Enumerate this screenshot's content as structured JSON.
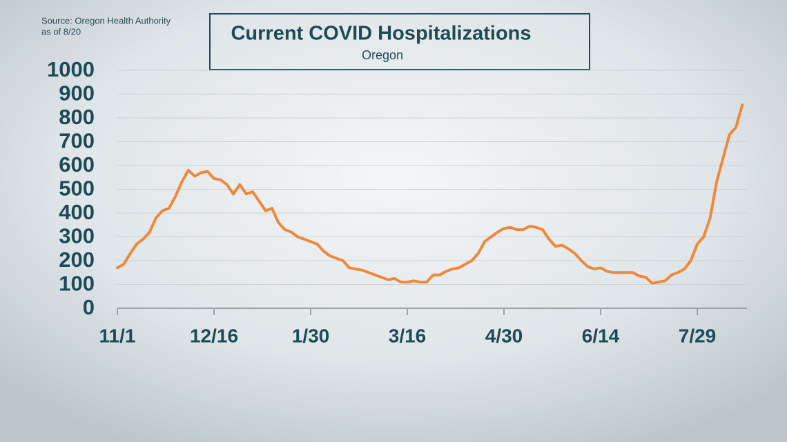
{
  "chart_data": {
    "type": "line",
    "title": "Current COVID Hospitalizations",
    "subtitle": "Oregon",
    "source": [
      "Source: Oregon Health Authority",
      "as of 8/20"
    ],
    "categories": [
      "11/1",
      null,
      null,
      null,
      null,
      null,
      null,
      null,
      null,
      null,
      null,
      null,
      null,
      null,
      null,
      "12/16",
      null,
      null,
      null,
      null,
      null,
      null,
      null,
      null,
      null,
      null,
      null,
      null,
      null,
      null,
      "1/30",
      null,
      null,
      null,
      null,
      null,
      null,
      null,
      null,
      null,
      null,
      null,
      null,
      null,
      null,
      "3/16",
      null,
      null,
      null,
      null,
      null,
      null,
      null,
      null,
      null,
      null,
      null,
      null,
      null,
      null,
      "4/30",
      null,
      null,
      null,
      null,
      null,
      null,
      null,
      null,
      null,
      null,
      null,
      null,
      null,
      null,
      "6/14",
      null,
      null,
      null,
      null,
      null,
      null,
      null,
      null,
      null,
      null,
      null,
      null,
      null,
      null,
      "7/29",
      null,
      null,
      null,
      null,
      null,
      null,
      null
    ],
    "series": [
      {
        "name": "Current COVID Hospitalizations",
        "color": "#f0883a",
        "values": [
          170,
          185,
          230,
          270,
          290,
          320,
          380,
          410,
          420,
          470,
          530,
          580,
          555,
          570,
          575,
          545,
          540,
          520,
          480,
          520,
          480,
          490,
          450,
          410,
          420,
          360,
          330,
          320,
          300,
          290,
          280,
          270,
          240,
          220,
          210,
          200,
          170,
          165,
          160,
          150,
          140,
          130,
          120,
          125,
          110,
          110,
          115,
          110,
          110,
          140,
          140,
          155,
          165,
          170,
          185,
          200,
          230,
          280,
          300,
          320,
          335,
          340,
          330,
          330,
          345,
          340,
          330,
          290,
          260,
          265,
          250,
          230,
          200,
          175,
          165,
          170,
          155,
          150,
          150,
          150,
          150,
          135,
          130,
          105,
          110,
          115,
          140,
          150,
          165,
          200,
          270,
          300,
          380,
          530,
          630,
          730,
          760,
          855
        ]
      }
    ],
    "ylim": [
      0,
      1000
    ],
    "yticks": [
      0,
      100,
      200,
      300,
      400,
      500,
      600,
      700,
      800,
      900,
      1000
    ],
    "grid": true
  }
}
